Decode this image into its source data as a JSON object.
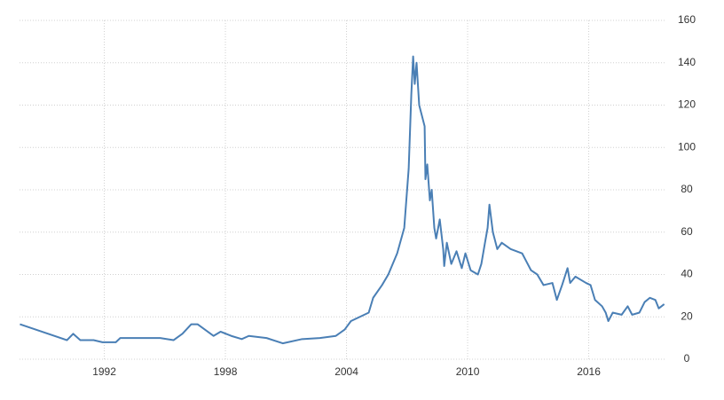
{
  "chart_data": {
    "type": "line",
    "color": "#4a7fb5",
    "grid": true,
    "xlim": [
      1987.8,
      2019.8
    ],
    "xticks": [
      1992,
      1998,
      2004,
      2010,
      2016
    ],
    "ylim": [
      0,
      160
    ],
    "yticks": [
      0,
      20,
      40,
      60,
      80,
      100,
      120,
      140,
      160
    ],
    "x": [
      1987.82,
      1990.15,
      1990.46,
      1990.81,
      1991.47,
      1991.91,
      1992.57,
      1992.79,
      1994.77,
      1995.43,
      1995.87,
      1996.31,
      1996.62,
      1997.41,
      1997.76,
      1998.29,
      1998.81,
      1999.16,
      2000.04,
      2000.84,
      2001.8,
      2002.68,
      2003.47,
      2003.91,
      2004.22,
      2004.66,
      2005.1,
      2005.32,
      2005.76,
      2006.07,
      2006.51,
      2006.86,
      2007.08,
      2007.21,
      2007.3,
      2007.38,
      2007.47,
      2007.6,
      2007.87,
      2007.91,
      2008.0,
      2008.13,
      2008.22,
      2008.35,
      2008.44,
      2008.62,
      2008.79,
      2008.84,
      2008.97,
      2009.19,
      2009.45,
      2009.71,
      2009.89,
      2010.15,
      2010.51,
      2010.68,
      2010.86,
      2010.99,
      2011.08,
      2011.25,
      2011.47,
      2011.69,
      2012.13,
      2012.7,
      2012.92,
      2013.14,
      2013.45,
      2013.76,
      2014.2,
      2014.42,
      2014.68,
      2014.95,
      2015.08,
      2015.34,
      2015.87,
      2016.09,
      2016.31,
      2016.66,
      2016.84,
      2016.97,
      2017.19,
      2017.63,
      2017.93,
      2018.15,
      2018.51,
      2018.77,
      2019.03,
      2019.3,
      2019.47,
      2019.74
    ],
    "values": [
      16.5,
      9,
      12,
      9,
      9,
      8,
      8,
      10,
      10,
      9,
      12,
      16.5,
      16.5,
      11,
      13,
      11,
      9.5,
      11,
      10,
      7.5,
      9.5,
      10,
      11,
      14,
      18,
      20,
      22,
      29,
      35,
      40,
      50,
      62,
      90,
      125,
      143,
      130,
      140,
      120,
      110,
      85,
      92,
      75,
      80,
      62,
      57,
      66,
      52,
      44,
      55,
      45,
      51,
      43,
      50,
      42,
      40,
      45,
      55,
      62,
      73,
      60,
      52,
      55,
      52,
      50,
      46,
      42,
      40,
      35,
      36,
      28,
      35,
      43,
      36,
      39,
      36,
      35,
      28,
      25,
      22,
      18,
      22,
      21,
      25,
      21,
      22,
      27,
      29,
      28,
      24,
      26
    ]
  }
}
